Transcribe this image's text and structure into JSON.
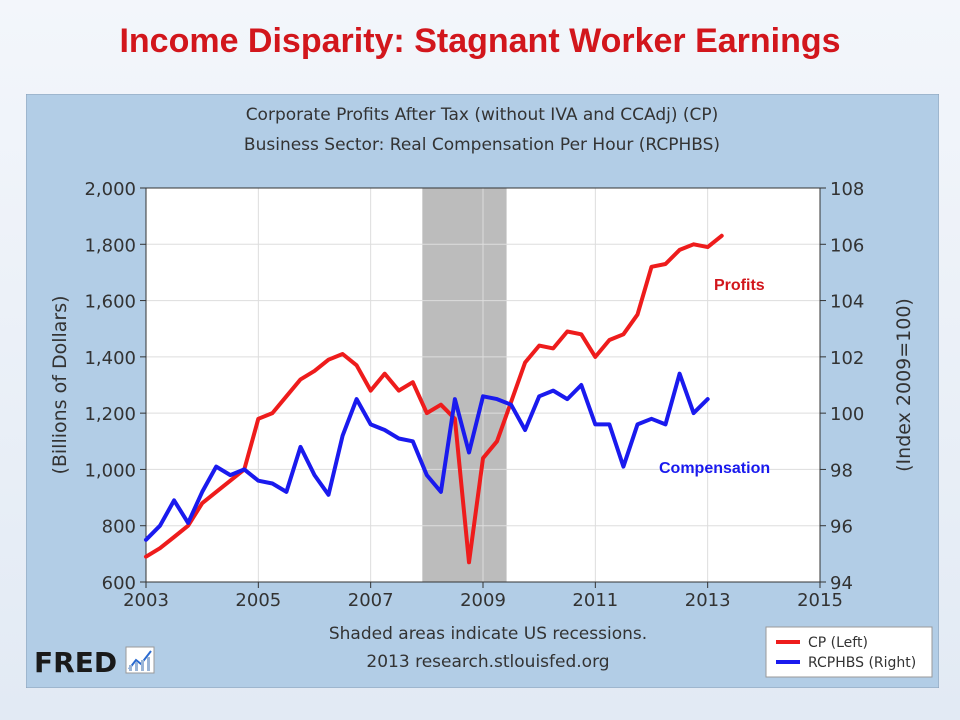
{
  "slide": {
    "title": "Income Disparity: Stagnant Worker Earnings"
  },
  "chart_data": {
    "type": "line",
    "title_lines": [
      "Corporate Profits After Tax (without IVA and CCAdj) (CP)",
      "Business Sector: Real Compensation Per Hour (RCPHBS)"
    ],
    "ylabel_left": "(Billions of Dollars)",
    "ylabel_right": "(Index 2009=100)",
    "xlim": [
      2003,
      2015
    ],
    "x_ticks": [
      "2003",
      "2005",
      "2007",
      "2009",
      "2011",
      "2013",
      "2015"
    ],
    "ylim_left": [
      600,
      2000
    ],
    "y_ticks_left": [
      "600",
      "800",
      "1,000",
      "1,200",
      "1,400",
      "1,600",
      "1,800",
      "2,000"
    ],
    "ylim_right": [
      94,
      108
    ],
    "y_ticks_right": [
      "94",
      "96",
      "98",
      "100",
      "102",
      "104",
      "106",
      "108"
    ],
    "grid": true,
    "recession": {
      "start": 2007.92,
      "end": 2009.42,
      "color": "#bcbcbc"
    },
    "footnote_lines": [
      "Shaded areas indicate US recessions.",
      "2013 research.stlouisfed.org"
    ],
    "legend_position": "bottom-right",
    "source_logo": "FRED",
    "series": [
      {
        "name": "CP (Left)",
        "color": "#ee1c1c",
        "axis": "left",
        "points": [
          [
            2003.0,
            690
          ],
          [
            2003.25,
            720
          ],
          [
            2003.5,
            760
          ],
          [
            2003.75,
            800
          ],
          [
            2004.0,
            880
          ],
          [
            2004.25,
            920
          ],
          [
            2004.5,
            960
          ],
          [
            2004.75,
            1000
          ],
          [
            2005.0,
            1180
          ],
          [
            2005.25,
            1200
          ],
          [
            2005.5,
            1260
          ],
          [
            2005.75,
            1320
          ],
          [
            2006.0,
            1350
          ],
          [
            2006.25,
            1390
          ],
          [
            2006.5,
            1410
          ],
          [
            2006.75,
            1370
          ],
          [
            2007.0,
            1280
          ],
          [
            2007.25,
            1340
          ],
          [
            2007.5,
            1280
          ],
          [
            2007.75,
            1310
          ],
          [
            2008.0,
            1200
          ],
          [
            2008.25,
            1230
          ],
          [
            2008.5,
            1180
          ],
          [
            2008.75,
            670
          ],
          [
            2009.0,
            1040
          ],
          [
            2009.25,
            1100
          ],
          [
            2009.5,
            1240
          ],
          [
            2009.75,
            1380
          ],
          [
            2010.0,
            1440
          ],
          [
            2010.25,
            1430
          ],
          [
            2010.5,
            1490
          ],
          [
            2010.75,
            1480
          ],
          [
            2011.0,
            1400
          ],
          [
            2011.25,
            1460
          ],
          [
            2011.5,
            1480
          ],
          [
            2011.75,
            1550
          ],
          [
            2012.0,
            1720
          ],
          [
            2012.25,
            1730
          ],
          [
            2012.5,
            1780
          ],
          [
            2012.75,
            1800
          ],
          [
            2013.0,
            1790
          ],
          [
            2013.25,
            1830
          ]
        ]
      },
      {
        "name": "RCPHBS (Right)",
        "color": "#1a1aee",
        "axis": "right",
        "points": [
          [
            2003.0,
            95.5
          ],
          [
            2003.25,
            96.0
          ],
          [
            2003.5,
            96.9
          ],
          [
            2003.75,
            96.1
          ],
          [
            2004.0,
            97.2
          ],
          [
            2004.25,
            98.1
          ],
          [
            2004.5,
            97.8
          ],
          [
            2004.75,
            98.0
          ],
          [
            2005.0,
            97.6
          ],
          [
            2005.25,
            97.5
          ],
          [
            2005.5,
            97.2
          ],
          [
            2005.75,
            98.8
          ],
          [
            2006.0,
            97.8
          ],
          [
            2006.25,
            97.1
          ],
          [
            2006.5,
            99.2
          ],
          [
            2006.75,
            100.5
          ],
          [
            2007.0,
            99.6
          ],
          [
            2007.25,
            99.4
          ],
          [
            2007.5,
            99.1
          ],
          [
            2007.75,
            99.0
          ],
          [
            2008.0,
            97.8
          ],
          [
            2008.25,
            97.2
          ],
          [
            2008.5,
            100.5
          ],
          [
            2008.75,
            98.6
          ],
          [
            2009.0,
            100.6
          ],
          [
            2009.25,
            100.5
          ],
          [
            2009.5,
            100.3
          ],
          [
            2009.75,
            99.4
          ],
          [
            2010.0,
            100.6
          ],
          [
            2010.25,
            100.8
          ],
          [
            2010.5,
            100.5
          ],
          [
            2010.75,
            101.0
          ],
          [
            2011.0,
            99.6
          ],
          [
            2011.25,
            99.6
          ],
          [
            2011.5,
            98.1
          ],
          [
            2011.75,
            99.6
          ],
          [
            2012.0,
            99.8
          ],
          [
            2012.25,
            99.6
          ],
          [
            2012.5,
            101.4
          ],
          [
            2012.75,
            100.0
          ],
          [
            2013.0,
            100.5
          ]
        ]
      }
    ],
    "annotations": [
      {
        "text": "Profits",
        "color": "#d2161c"
      },
      {
        "text": "Compensation",
        "color": "#1a1aee"
      }
    ]
  }
}
